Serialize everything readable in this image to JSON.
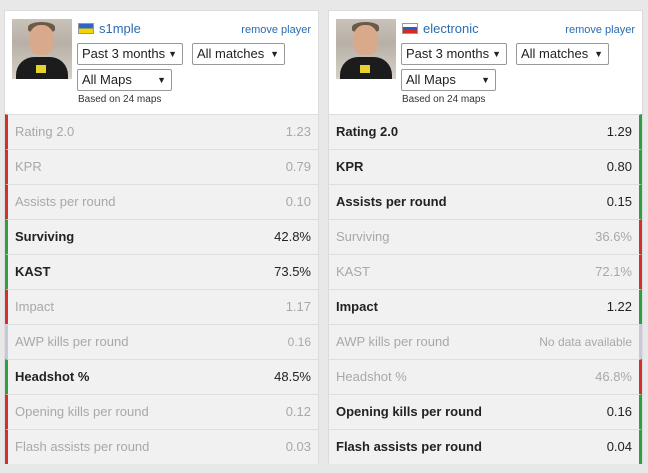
{
  "colors": {
    "win": "#2ea043",
    "loss": "#d0312d",
    "neutral": "#c8c8d8",
    "link": "#2a6bb2"
  },
  "players": [
    {
      "nickname": "s1mple",
      "flag": "ukraine-flag-icon",
      "remove_label": "remove player",
      "period": "Past 3 months",
      "matches": "All matches",
      "maps": "All Maps",
      "based_on": "Based on 24 maps",
      "stats": [
        {
          "name": "Rating 2.0",
          "value": "1.23",
          "status": "loss"
        },
        {
          "name": "KPR",
          "value": "0.79",
          "status": "loss"
        },
        {
          "name": "Assists per round",
          "value": "0.10",
          "status": "loss"
        },
        {
          "name": "Surviving",
          "value": "42.8%",
          "status": "win"
        },
        {
          "name": "KAST",
          "value": "73.5%",
          "status": "win"
        },
        {
          "name": "Impact",
          "value": "1.17",
          "status": "loss"
        },
        {
          "name": "AWP kills per round",
          "value": "0.16",
          "status": "na"
        },
        {
          "name": "Headshot %",
          "value": "48.5%",
          "status": "win"
        },
        {
          "name": "Opening kills per round",
          "value": "0.12",
          "status": "loss"
        },
        {
          "name": "Flash assists per round",
          "value": "0.03",
          "status": "loss"
        }
      ]
    },
    {
      "nickname": "electronic",
      "flag": "russia-flag-icon",
      "remove_label": "remove player",
      "period": "Past 3 months",
      "matches": "All matches",
      "maps": "All Maps",
      "based_on": "Based on 24 maps",
      "stats": [
        {
          "name": "Rating 2.0",
          "value": "1.29",
          "status": "win"
        },
        {
          "name": "KPR",
          "value": "0.80",
          "status": "win"
        },
        {
          "name": "Assists per round",
          "value": "0.15",
          "status": "win"
        },
        {
          "name": "Surviving",
          "value": "36.6%",
          "status": "loss"
        },
        {
          "name": "KAST",
          "value": "72.1%",
          "status": "loss"
        },
        {
          "name": "Impact",
          "value": "1.22",
          "status": "win"
        },
        {
          "name": "AWP kills per round",
          "value": "No data available",
          "status": "na"
        },
        {
          "name": "Headshot %",
          "value": "46.8%",
          "status": "loss"
        },
        {
          "name": "Opening kills per round",
          "value": "0.16",
          "status": "win"
        },
        {
          "name": "Flash assists per round",
          "value": "0.04",
          "status": "win"
        }
      ]
    }
  ]
}
